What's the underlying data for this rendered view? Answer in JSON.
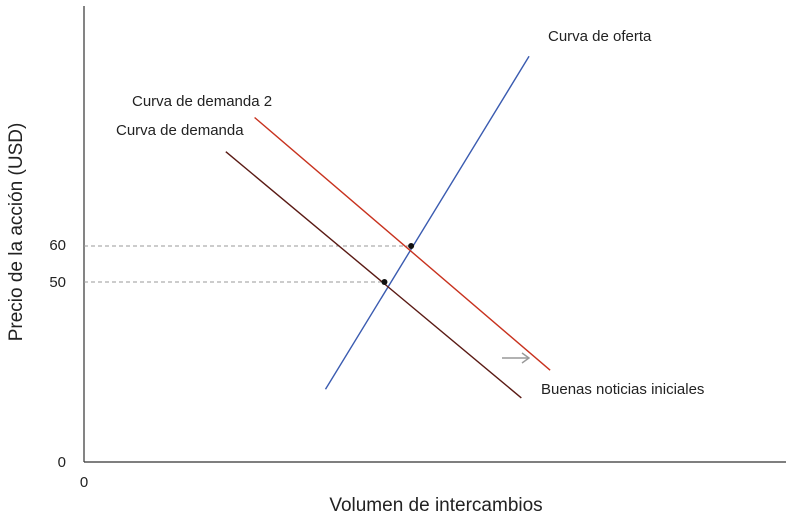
{
  "chart_data": {
    "type": "line",
    "title": "",
    "xlabel": "Volumen de intercambios",
    "ylabel": "Precio de la acción (USD)",
    "xlim": [
      0,
      100
    ],
    "ylim": [
      0,
      100
    ],
    "x_ticks": [
      {
        "value": 0,
        "label": "0"
      }
    ],
    "y_ticks": [
      {
        "value": 0,
        "label": "0"
      },
      {
        "value": 50,
        "label": "50"
      },
      {
        "value": 60,
        "label": "60"
      }
    ],
    "grid": false,
    "series": [
      {
        "name": "Curva de oferta",
        "color": "#3a5bb0",
        "points": [
          [
            34.4,
            20.2
          ],
          [
            63.4,
            112.7
          ]
        ]
      },
      {
        "name": "Curva de demanda",
        "color": "#5a1a14",
        "points": [
          [
            20.2,
            86.2
          ],
          [
            62.3,
            17.8
          ]
        ]
      },
      {
        "name": "Curva de demanda 2",
        "color": "#c8321e",
        "points": [
          [
            24.3,
            95.7
          ],
          [
            66.4,
            25.5
          ]
        ]
      }
    ],
    "equilibria": [
      {
        "x": 42.8,
        "y": 50,
        "label": "50"
      },
      {
        "x": 46.6,
        "y": 60,
        "label": "60"
      }
    ],
    "annotations": [
      {
        "text": "Buenas noticias iniciales",
        "arrow": "right",
        "color": "#999999"
      }
    ]
  }
}
